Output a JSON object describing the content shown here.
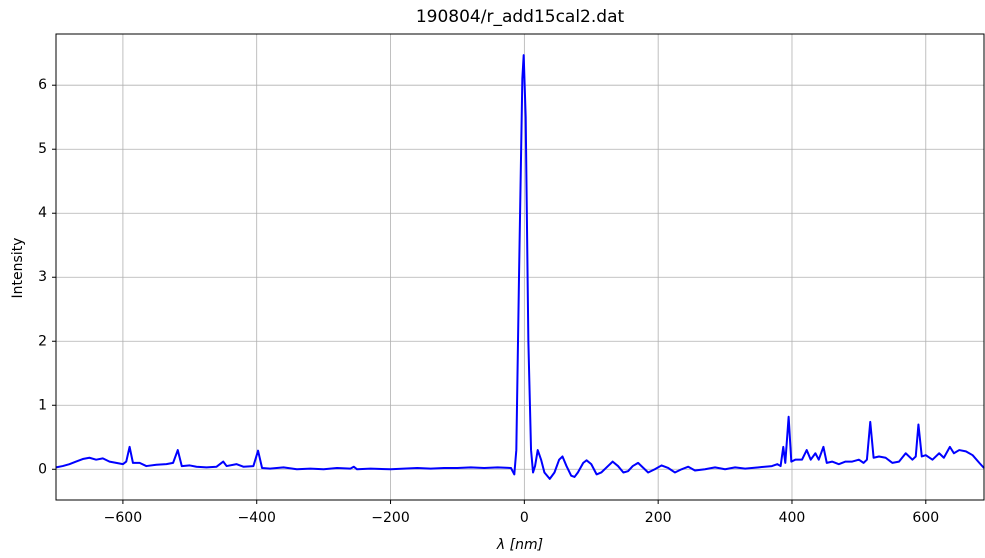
{
  "chart_data": {
    "type": "line",
    "title": "190804/r_add15cal2.dat",
    "x_label": "λ [nm]",
    "y_label": "Intensity",
    "x": [
      -700,
      -690,
      -680,
      -670,
      -660,
      -650,
      -640,
      -630,
      -620,
      -610,
      -600,
      -595,
      -590,
      -585,
      -575,
      -565,
      -550,
      -535,
      -525,
      -518,
      -512,
      -500,
      -490,
      -475,
      -460,
      -450,
      -445,
      -430,
      -420,
      -405,
      -398,
      -392,
      -380,
      -360,
      -340,
      -320,
      -300,
      -280,
      -260,
      -255,
      -250,
      -230,
      -200,
      -180,
      -160,
      -140,
      -120,
      -100,
      -80,
      -60,
      -40,
      -20,
      -15,
      -12,
      -8,
      -3,
      -1,
      2,
      6,
      10,
      13,
      16,
      20,
      25,
      30,
      38,
      45,
      52,
      57,
      63,
      70,
      75,
      80,
      88,
      93,
      100,
      108,
      115,
      125,
      132,
      140,
      148,
      155,
      162,
      170,
      178,
      185,
      195,
      205,
      215,
      225,
      235,
      245,
      255,
      270,
      285,
      300,
      315,
      330,
      350,
      370,
      378,
      383,
      387,
      390,
      395,
      399,
      405,
      415,
      422,
      428,
      435,
      440,
      447,
      452,
      460,
      470,
      480,
      490,
      500,
      507,
      512,
      517,
      522,
      530,
      540,
      550,
      560,
      570,
      580,
      585,
      589,
      594,
      600,
      610,
      620,
      627,
      636,
      642,
      650,
      660,
      670,
      680,
      687
    ],
    "series": [
      {
        "color": "#0000ff",
        "values": [
          0.03,
          0.05,
          0.08,
          0.12,
          0.16,
          0.18,
          0.15,
          0.17,
          0.12,
          0.1,
          0.08,
          0.12,
          0.35,
          0.1,
          0.1,
          0.05,
          0.07,
          0.08,
          0.1,
          0.3,
          0.05,
          0.06,
          0.04,
          0.03,
          0.04,
          0.12,
          0.05,
          0.08,
          0.04,
          0.05,
          0.29,
          0.02,
          0.01,
          0.03,
          0.0,
          0.01,
          0.0,
          0.02,
          0.01,
          0.04,
          0.0,
          0.01,
          0.0,
          0.01,
          0.02,
          0.01,
          0.02,
          0.02,
          0.03,
          0.02,
          0.03,
          0.02,
          -0.08,
          0.3,
          3.0,
          6.1,
          6.47,
          5.5,
          2.0,
          0.3,
          -0.05,
          0.05,
          0.3,
          0.15,
          -0.05,
          -0.15,
          -0.05,
          0.15,
          0.2,
          0.05,
          -0.1,
          -0.12,
          -0.05,
          0.1,
          0.14,
          0.08,
          -0.08,
          -0.05,
          0.05,
          0.12,
          0.05,
          -0.05,
          -0.03,
          0.05,
          0.1,
          0.02,
          -0.05,
          0.0,
          0.06,
          0.02,
          -0.05,
          0.0,
          0.04,
          -0.02,
          0.0,
          0.03,
          0.0,
          0.03,
          0.01,
          0.03,
          0.05,
          0.08,
          0.05,
          0.35,
          0.1,
          0.82,
          0.12,
          0.15,
          0.15,
          0.3,
          0.15,
          0.25,
          0.15,
          0.35,
          0.1,
          0.12,
          0.08,
          0.12,
          0.12,
          0.15,
          0.1,
          0.15,
          0.74,
          0.18,
          0.2,
          0.18,
          0.1,
          0.12,
          0.25,
          0.15,
          0.2,
          0.7,
          0.2,
          0.22,
          0.15,
          0.25,
          0.18,
          0.35,
          0.25,
          0.3,
          0.28,
          0.22,
          0.1,
          0.02
        ]
      }
    ],
    "xlim": [
      -700,
      687
    ],
    "ylim": [
      -0.48,
      6.8
    ],
    "xticks": [
      {
        "value": -600,
        "label": "−600"
      },
      {
        "value": -400,
        "label": "−400"
      },
      {
        "value": -200,
        "label": "−200"
      },
      0,
      200,
      400,
      600
    ],
    "yticks": [
      0,
      1,
      2,
      3,
      4,
      5,
      6
    ],
    "grid": true
  }
}
